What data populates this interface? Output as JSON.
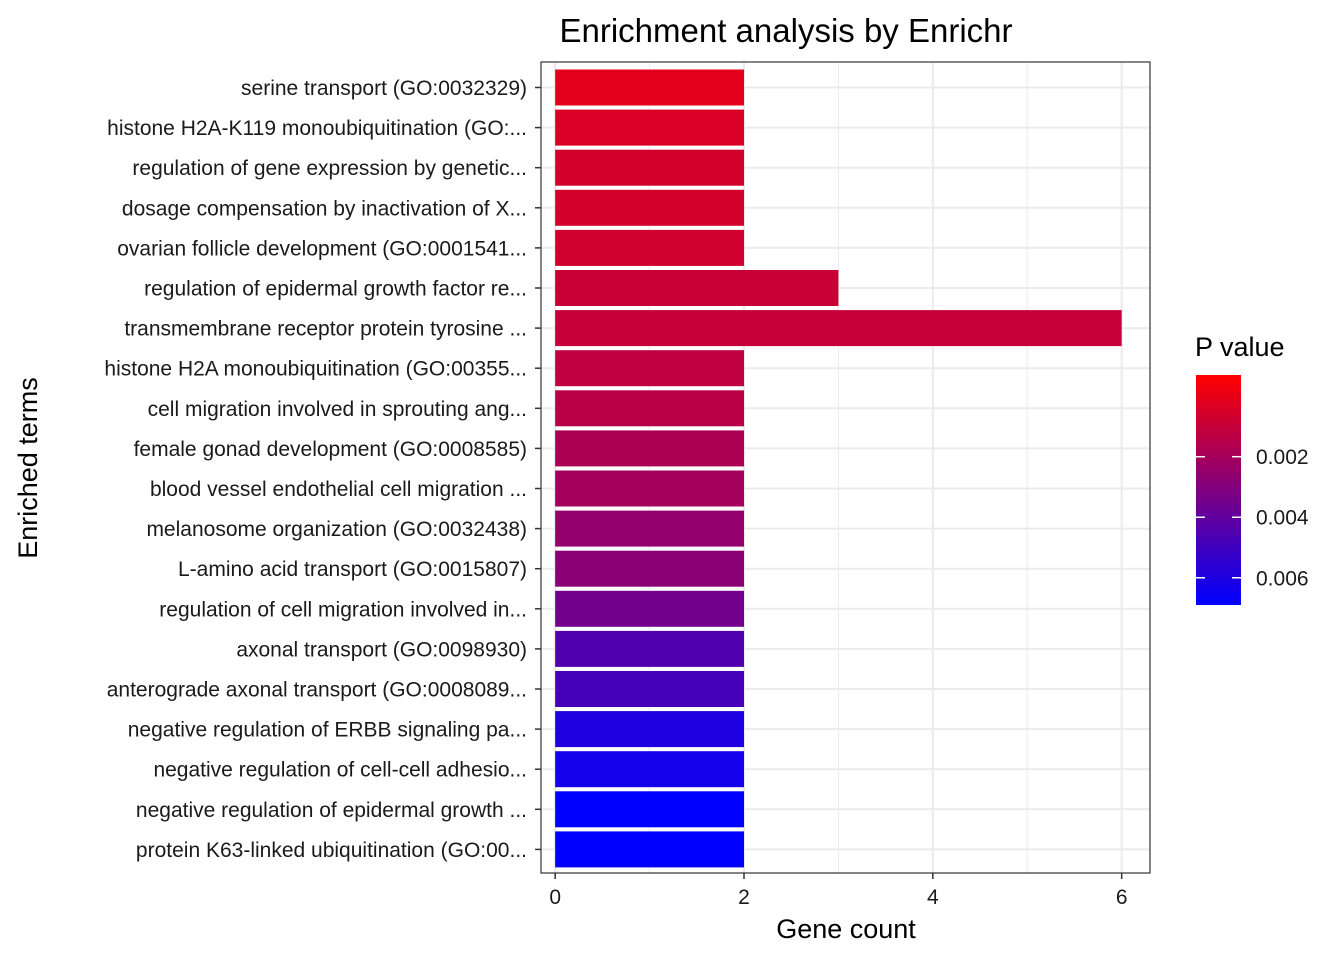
{
  "chart_data": {
    "type": "bar",
    "orientation": "horizontal",
    "title": "Enrichment analysis by Enrichr",
    "xlabel": "Gene count",
    "ylabel": "Enriched terms",
    "xlim": [
      -0.15,
      6.3
    ],
    "x_ticks": [
      0,
      2,
      4,
      6
    ],
    "grid": true,
    "categories": [
      "serine transport (GO:0032329)",
      "histone H2A-K119 monoubiquitination (GO:...",
      "regulation of gene expression by genetic...",
      "dosage compensation by inactivation of X...",
      "ovarian follicle development (GO:0001541...",
      "regulation of epidermal growth factor re...",
      "transmembrane receptor protein tyrosine ...",
      "histone H2A monoubiquitination (GO:00355...",
      "cell migration involved in sprouting ang...",
      "female gonad development (GO:0008585)",
      "blood vessel endothelial cell migration ...",
      "melanosome organization (GO:0032438)",
      "L-amino acid transport (GO:0015807)",
      "regulation of cell migration involved in...",
      "axonal transport (GO:0098930)",
      "anterograde axonal transport (GO:0008089...",
      "negative regulation of ERBB signaling pa...",
      "negative regulation of cell-cell adhesio...",
      "negative regulation of epidermal growth ...",
      "protein K63-linked ubiquitination (GO:00..."
    ],
    "values": [
      2,
      2,
      2,
      2,
      2,
      3,
      6,
      2,
      2,
      2,
      2,
      2,
      2,
      2,
      2,
      2,
      2,
      2,
      2,
      2
    ],
    "color_values": [
      0.0001,
      0.0004,
      0.0006,
      0.0006,
      0.0007,
      0.0009,
      0.001,
      0.0012,
      0.0014,
      0.0018,
      0.002,
      0.0025,
      0.0028,
      0.0035,
      0.0045,
      0.0048,
      0.006,
      0.0063,
      0.0075,
      0.0076
    ],
    "legend": {
      "title": "P value",
      "position": "right",
      "range": [
        -0.0007,
        0.0069
      ],
      "low_color": "#FF0000",
      "high_color": "#0000FF",
      "ticks": [
        0.002,
        0.004,
        0.006
      ],
      "tick_labels": [
        "0.002",
        "0.004",
        "0.006"
      ]
    }
  }
}
